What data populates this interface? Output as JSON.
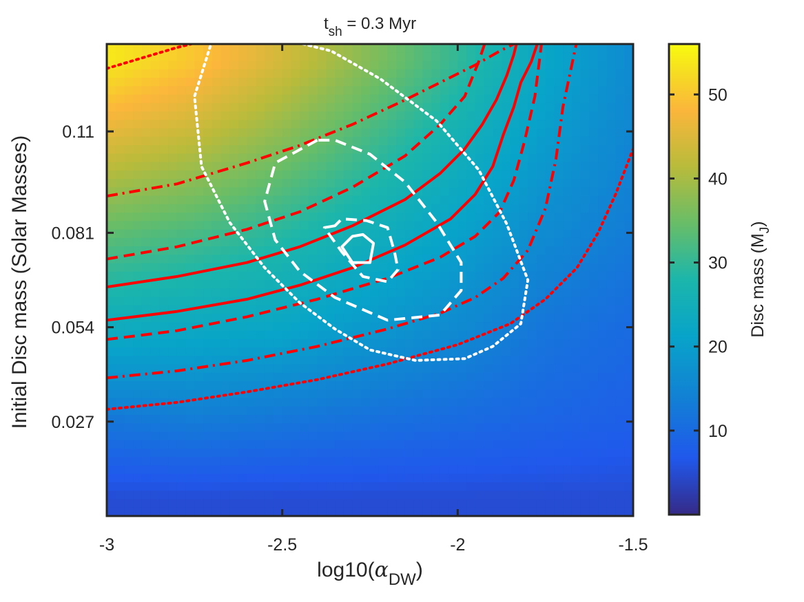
{
  "chart_data": {
    "type": "heatmap",
    "title": {
      "base": "t",
      "sub": "sh",
      "rest": " = 0.3 Myr"
    },
    "xlabel": {
      "base": "log10(",
      "greek": "α",
      "sub": "DW",
      "close": ")"
    },
    "ylabel": "Initial Disc mass (Solar Masses)",
    "colorbar_label": {
      "base": "Disc mass (M",
      "sub": "J",
      "close": ")"
    },
    "xlim": [
      -3,
      -1.5
    ],
    "ylim": [
      0,
      0.135
    ],
    "x_ticks": [
      -3,
      -2.5,
      -2,
      -1.5
    ],
    "x_tick_labels": [
      "-3",
      "-2.5",
      "-2",
      "-1.5"
    ],
    "y_ticks": [
      0.027,
      0.054,
      0.081,
      0.11
    ],
    "y_tick_labels": [
      "0.027",
      "0.054",
      "0.081",
      "0.11"
    ],
    "colorbar_range": [
      0,
      56
    ],
    "colorbar_ticks": [
      10,
      20,
      30,
      40,
      50
    ],
    "colorbar_tick_labels": [
      "10",
      "20",
      "30",
      "40",
      "50"
    ],
    "colormap": "parula",
    "field": {
      "x": [
        -3.0,
        -2.75,
        -2.5,
        -2.25,
        -2.0,
        -1.75,
        -1.5
      ],
      "y": [
        0.005,
        0.027,
        0.054,
        0.081,
        0.11,
        0.13
      ],
      "values": [
        [
          5,
          5,
          5,
          5,
          5,
          5,
          5
        ],
        [
          12,
          13,
          12,
          11,
          10,
          9,
          8
        ],
        [
          24,
          23,
          22,
          19,
          16,
          12,
          10
        ],
        [
          34,
          32,
          29,
          25,
          21,
          16,
          13
        ],
        [
          46,
          43,
          38,
          32,
          26,
          20,
          15
        ],
        [
          54,
          50,
          44,
          37,
          30,
          22,
          16
        ]
      ]
    },
    "contours": [
      {
        "color": "#ff0000",
        "style": "dotted",
        "x": [
          -3,
          -2.8,
          -2.6,
          -2.4,
          -2.2,
          -2.0,
          -1.85,
          -1.75,
          -1.66,
          -1.6,
          -1.55,
          -1.5
        ],
        "y": [
          0.0305,
          0.0325,
          0.0355,
          0.039,
          0.0435,
          0.049,
          0.055,
          0.062,
          0.071,
          0.081,
          0.092,
          0.105
        ]
      },
      {
        "color": "#ff0000",
        "style": "dotted",
        "x": [
          -3,
          -2.9,
          -2.8,
          -2.72
        ],
        "y": [
          0.128,
          0.131,
          0.134,
          0.136
        ]
      },
      {
        "color": "#ff0000",
        "style": "dashdot",
        "x": [
          -3,
          -2.8,
          -2.6,
          -2.4,
          -2.2,
          -2.05,
          -1.95,
          -1.87,
          -1.8,
          -1.75,
          -1.72,
          -1.7,
          -1.66
        ],
        "y": [
          0.0395,
          0.0415,
          0.0445,
          0.0485,
          0.0535,
          0.058,
          0.0625,
          0.068,
          0.076,
          0.088,
          0.102,
          0.117,
          0.136
        ]
      },
      {
        "color": "#ff0000",
        "style": "dashdot",
        "x": [
          -3,
          -2.8,
          -2.6,
          -2.45,
          -2.3,
          -2.15,
          -2.05,
          -1.95,
          -1.88,
          -1.84,
          -1.82
        ],
        "y": [
          0.0915,
          0.095,
          0.101,
          0.106,
          0.112,
          0.119,
          0.124,
          0.129,
          0.133,
          0.135,
          0.136
        ]
      },
      {
        "color": "#ff0000",
        "style": "dashed",
        "x": [
          -3,
          -2.8,
          -2.6,
          -2.4,
          -2.2,
          -2.05,
          -1.95,
          -1.88,
          -1.84,
          -1.81,
          -1.78,
          -1.76
        ],
        "y": [
          0.0505,
          0.053,
          0.057,
          0.062,
          0.068,
          0.074,
          0.08,
          0.087,
          0.096,
          0.107,
          0.12,
          0.136
        ]
      },
      {
        "color": "#ff0000",
        "style": "dashed",
        "x": [
          -3,
          -2.8,
          -2.6,
          -2.45,
          -2.3,
          -2.15,
          -2.05,
          -1.98,
          -1.94,
          -1.92
        ],
        "y": [
          0.0735,
          0.077,
          0.082,
          0.087,
          0.094,
          0.103,
          0.112,
          0.12,
          0.13,
          0.136
        ]
      },
      {
        "color": "#ff0000",
        "style": "solid",
        "x": [
          -3,
          -2.8,
          -2.6,
          -2.45,
          -2.3,
          -2.15,
          -2.02,
          -1.95,
          -1.9,
          -1.87,
          -1.84,
          -1.82,
          -1.79,
          -1.77
        ],
        "y": [
          0.056,
          0.0585,
          0.062,
          0.066,
          0.071,
          0.0775,
          0.085,
          0.092,
          0.1,
          0.109,
          0.117,
          0.124,
          0.13,
          0.136
        ]
      },
      {
        "color": "#ff0000",
        "style": "solid",
        "x": [
          -3,
          -2.8,
          -2.6,
          -2.45,
          -2.3,
          -2.15,
          -2.05,
          -1.98,
          -1.93,
          -1.89,
          -1.86,
          -1.84,
          -1.83
        ],
        "y": [
          0.0655,
          0.0685,
          0.0725,
          0.077,
          0.083,
          0.0905,
          0.098,
          0.105,
          0.112,
          0.119,
          0.126,
          0.132,
          0.136
        ]
      },
      {
        "color": "#ffffff",
        "style": "dotted",
        "closed": true,
        "x": [
          -2.7,
          -2.75,
          -2.73,
          -2.65,
          -2.55,
          -2.45,
          -2.35,
          -2.25,
          -2.12,
          -1.98,
          -1.9,
          -1.82,
          -1.8,
          -1.86,
          -1.94,
          -2.06,
          -2.22,
          -2.36,
          -2.48,
          -2.58,
          -2.65
        ],
        "y": [
          0.136,
          0.12,
          0.1,
          0.084,
          0.071,
          0.061,
          0.0535,
          0.0475,
          0.0445,
          0.045,
          0.0485,
          0.055,
          0.0675,
          0.0835,
          0.099,
          0.113,
          0.125,
          0.133,
          0.136,
          0.136,
          0.136
        ]
      },
      {
        "color": "#ffffff",
        "style": "dashed",
        "closed": true,
        "x": [
          -2.4,
          -2.52,
          -2.55,
          -2.52,
          -2.45,
          -2.35,
          -2.2,
          -2.05,
          -1.99,
          -1.99,
          -2.06,
          -2.15,
          -2.25,
          -2.35
        ],
        "y": [
          0.1075,
          0.101,
          0.09,
          0.079,
          0.07,
          0.0625,
          0.056,
          0.0575,
          0.0645,
          0.0725,
          0.084,
          0.0955,
          0.1035,
          0.1075
        ]
      },
      {
        "color": "#ffffff",
        "style": "dashed",
        "closed": true,
        "x": [
          -2.35,
          -2.38,
          -2.33,
          -2.27,
          -2.2,
          -2.17,
          -2.18,
          -2.2,
          -2.26,
          -2.33
        ],
        "y": [
          0.083,
          0.0825,
          0.0755,
          0.0685,
          0.067,
          0.0705,
          0.0755,
          0.0825,
          0.0845,
          0.085
        ]
      },
      {
        "color": "#ffffff",
        "style": "solid",
        "closed": true,
        "x": [
          -2.3,
          -2.33,
          -2.3,
          -2.25,
          -2.24,
          -2.27
        ],
        "y": [
          0.08,
          0.077,
          0.0725,
          0.0725,
          0.078,
          0.0805
        ]
      }
    ]
  }
}
